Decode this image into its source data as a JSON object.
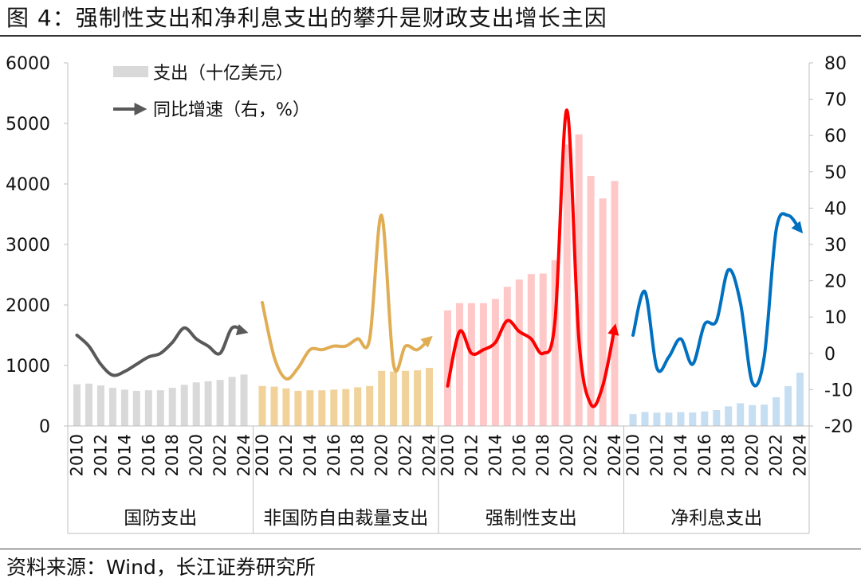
{
  "figure_title": "图 4：强制性支出和净利息支出的攀升是财政支出增长主因",
  "source_note": "资料来源：Wind，长江证券研究所",
  "chart_data": {
    "type": "bar+line",
    "legend": [
      {
        "label": "支出（十亿美元）",
        "kind": "bar-swatch",
        "color": "#d9d9d9"
      },
      {
        "label": "同比增速（右，%）",
        "kind": "line-arrow",
        "color": "#555555"
      }
    ],
    "left_axis": {
      "ylim": [
        0,
        6000
      ],
      "ticks": [
        "0",
        "1000",
        "2000",
        "3000",
        "4000",
        "5000",
        "6000"
      ]
    },
    "right_axis": {
      "ylim": [
        -20,
        80
      ],
      "ticks": [
        "-20",
        "-10",
        "0",
        "10",
        "20",
        "30",
        "40",
        "50",
        "60",
        "70",
        "80"
      ]
    },
    "x_tick_labels": [
      "2010",
      "2012",
      "2014",
      "2016",
      "2018",
      "2020",
      "2022",
      "2024"
    ],
    "groups": [
      {
        "name": "国防支出",
        "bar_color": "#d9d9d9",
        "line_color": "#595959",
        "years": [
          2010,
          2011,
          2012,
          2013,
          2014,
          2015,
          2016,
          2017,
          2018,
          2019,
          2020,
          2021,
          2022,
          2023,
          2024
        ],
        "spending": [
          690,
          700,
          670,
          630,
          600,
          580,
          590,
          590,
          630,
          680,
          720,
          740,
          760,
          810,
          850
        ],
        "growth": [
          5,
          2,
          -3,
          -6,
          -5,
          -3,
          -1,
          0,
          3,
          7,
          4,
          2,
          0,
          7,
          6
        ]
      },
      {
        "name": "非国防自由裁量支出",
        "bar_color": "#f0d29a",
        "line_color": "#e0ad55",
        "years": [
          2010,
          2011,
          2012,
          2013,
          2014,
          2015,
          2016,
          2017,
          2018,
          2019,
          2020,
          2021,
          2022,
          2023,
          2024
        ],
        "spending": [
          660,
          650,
          620,
          580,
          590,
          590,
          600,
          610,
          640,
          660,
          910,
          900,
          910,
          920,
          960
        ],
        "growth": [
          14,
          -1,
          -7,
          -4,
          1,
          1,
          2,
          2,
          4,
          4,
          38,
          -3,
          2,
          1,
          4
        ]
      },
      {
        "name": "强制性支出",
        "bar_color": "#ffc8c8",
        "line_color": "#ff0000",
        "years": [
          2010,
          2011,
          2012,
          2013,
          2014,
          2015,
          2016,
          2017,
          2018,
          2019,
          2020,
          2021,
          2022,
          2023,
          2024
        ],
        "spending": [
          1910,
          2030,
          2030,
          2030,
          2100,
          2300,
          2420,
          2510,
          2520,
          2740,
          4650,
          4820,
          4130,
          3760,
          4050
        ],
        "growth": [
          -9,
          6,
          0,
          1,
          3,
          9,
          6,
          4,
          0,
          9,
          67,
          4,
          -14,
          -9,
          7
        ]
      },
      {
        "name": "净利息支出",
        "bar_color": "#c6def2",
        "line_color": "#0070c0",
        "years": [
          2010,
          2011,
          2012,
          2013,
          2014,
          2015,
          2016,
          2017,
          2018,
          2019,
          2020,
          2021,
          2022,
          2023,
          2024
        ],
        "spending": [
          196,
          230,
          220,
          221,
          229,
          223,
          240,
          263,
          325,
          375,
          345,
          352,
          475,
          658,
          880
        ],
        "growth": [
          5,
          17,
          -4,
          -1,
          4,
          -3,
          8,
          9,
          23,
          14,
          -8,
          -1,
          34,
          38,
          34
        ]
      }
    ]
  }
}
